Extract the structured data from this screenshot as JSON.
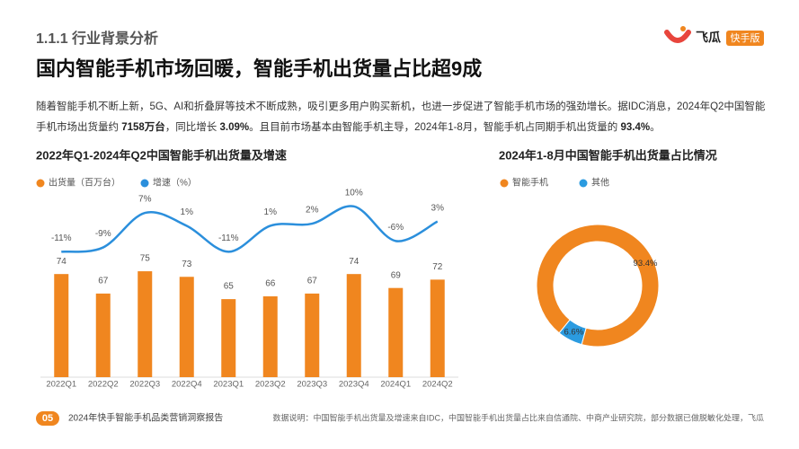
{
  "header": {
    "section": "1.1.1 行业背景分析",
    "title": "国内智能手机市场回暖，智能手机出货量占比超9成",
    "brand": "飞瓜",
    "badge": "快手版"
  },
  "paragraph": [
    {
      "text": "随着智能手机不断上新，5G、AI和折叠屏等技术不断成熟，吸引更多用户购买新机，也进一步促进了智能手机市场的强劲增长。据IDC消息，2024年Q2中国智能手机市场出货量约 ",
      "bold": false
    },
    {
      "text": "7158万台",
      "bold": true
    },
    {
      "text": "，同比增长 ",
      "bold": false
    },
    {
      "text": "3.09%",
      "bold": true
    },
    {
      "text": "。且目前市场基本由智能手机主导，2024年1-8月，智能手机占同期手机出货量的 ",
      "bold": false
    },
    {
      "text": "93.4%",
      "bold": true
    },
    {
      "text": "。",
      "bold": false
    }
  ],
  "chart_data": [
    {
      "type": "combo",
      "title": "2022年Q1-2024年Q2中国智能手机出货量及增速",
      "categories": [
        "2022Q1",
        "2022Q2",
        "2022Q3",
        "2022Q4",
        "2023Q1",
        "2023Q2",
        "2023Q3",
        "2023Q4",
        "2024Q1",
        "2024Q2"
      ],
      "series": [
        {
          "name": "出货量（百万台）",
          "type": "bar",
          "color": "#f0861f",
          "values": [
            74,
            67,
            75,
            73,
            65,
            66,
            67,
            74,
            69,
            72
          ]
        },
        {
          "name": "增速（%）",
          "type": "line",
          "color": "#2b8fdc",
          "axis": "y2",
          "values": [
            -11,
            -9,
            7,
            1,
            -11,
            1,
            2,
            10,
            -6,
            3
          ],
          "value_labels": [
            "-11%",
            "-9%",
            "7%",
            "1%",
            "-11%",
            "1%",
            "2%",
            "10%",
            "-6%",
            "3%"
          ]
        }
      ],
      "ylim": [
        37,
        95
      ],
      "y2lim": [
        -15,
        12
      ]
    },
    {
      "type": "donut",
      "title": "2024年1-8月中国智能手机出货量占比情况",
      "categories": [
        "智能手机",
        "其他"
      ],
      "values": [
        93.4,
        6.6
      ],
      "value_labels": [
        "93.4%",
        "6.6%"
      ],
      "colors": [
        "#f0861f",
        "#2b9be0"
      ]
    }
  ],
  "footer": {
    "page": "05",
    "report": "2024年快手智能手机品类营销洞察报告",
    "source": "数据说明：中国智能手机出货量及增速来自IDC，中国智能手机出货量占比来自信通院、中商产业研究院，部分数据已做脱敏化处理，飞瓜"
  }
}
